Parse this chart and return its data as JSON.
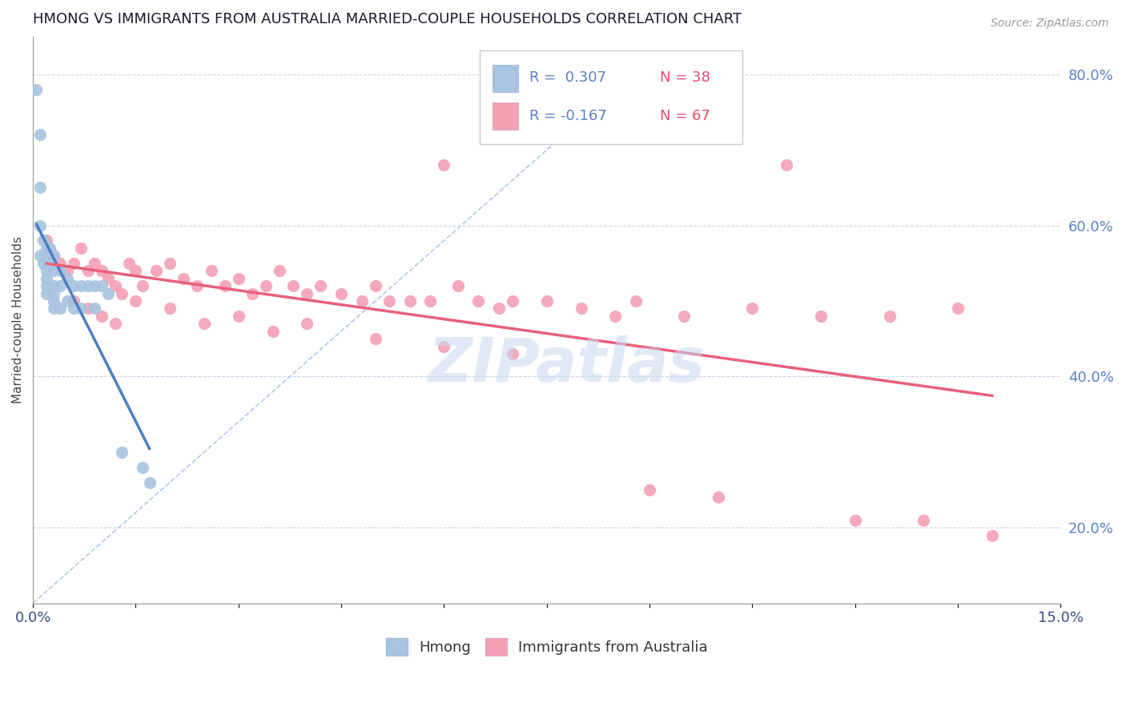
{
  "title": "HMONG VS IMMIGRANTS FROM AUSTRALIA MARRIED-COUPLE HOUSEHOLDS CORRELATION CHART",
  "source_text": "Source: ZipAtlas.com",
  "ylabel": "Married-couple Households",
  "xlim": [
    0.0,
    0.15
  ],
  "ylim": [
    0.1,
    0.85
  ],
  "xtick_positions": [
    0.0,
    0.015,
    0.03,
    0.045,
    0.06,
    0.075,
    0.09,
    0.105,
    0.12,
    0.135,
    0.15
  ],
  "xtick_labels": [
    "0.0%",
    "",
    "",
    "",
    "",
    "",
    "",
    "",
    "",
    "",
    "15.0%"
  ],
  "ytick_right_vals": [
    0.2,
    0.4,
    0.6,
    0.8
  ],
  "ytick_right_labels": [
    "20.0%",
    "40.0%",
    "60.0%",
    "80.0%"
  ],
  "hmong_color": "#a8c4e0",
  "australia_color": "#f4a0b5",
  "hmong_line_color": "#4a7fc4",
  "australia_line_color": "#e8607a",
  "ref_line_color": "#b0c8e8",
  "legend_R_hmong": "R =  0.307",
  "legend_N_hmong": "N = 38",
  "legend_R_australia": "R = -0.167",
  "legend_N_australia": "N = 67",
  "watermark": "ZIPatlas",
  "hmong_x": [
    0.0005,
    0.001,
    0.001,
    0.001,
    0.001,
    0.0015,
    0.0015,
    0.002,
    0.002,
    0.002,
    0.002,
    0.002,
    0.002,
    0.0025,
    0.0025,
    0.003,
    0.003,
    0.003,
    0.003,
    0.003,
    0.003,
    0.004,
    0.004,
    0.004,
    0.005,
    0.005,
    0.006,
    0.006,
    0.007,
    0.007,
    0.008,
    0.009,
    0.009,
    0.01,
    0.011,
    0.013,
    0.016,
    0.017
  ],
  "hmong_y": [
    0.78,
    0.72,
    0.65,
    0.6,
    0.56,
    0.58,
    0.55,
    0.57,
    0.56,
    0.54,
    0.53,
    0.52,
    0.51,
    0.57,
    0.55,
    0.56,
    0.54,
    0.52,
    0.51,
    0.5,
    0.49,
    0.54,
    0.52,
    0.49,
    0.53,
    0.5,
    0.52,
    0.49,
    0.52,
    0.49,
    0.52,
    0.52,
    0.49,
    0.52,
    0.51,
    0.3,
    0.28,
    0.26
  ],
  "australia_x": [
    0.002,
    0.003,
    0.004,
    0.005,
    0.006,
    0.007,
    0.008,
    0.009,
    0.01,
    0.011,
    0.012,
    0.013,
    0.014,
    0.015,
    0.016,
    0.018,
    0.02,
    0.022,
    0.024,
    0.026,
    0.028,
    0.03,
    0.032,
    0.034,
    0.036,
    0.038,
    0.04,
    0.042,
    0.045,
    0.048,
    0.05,
    0.052,
    0.055,
    0.058,
    0.06,
    0.062,
    0.065,
    0.068,
    0.07,
    0.075,
    0.08,
    0.085,
    0.088,
    0.09,
    0.095,
    0.1,
    0.105,
    0.11,
    0.115,
    0.12,
    0.125,
    0.13,
    0.135,
    0.14,
    0.006,
    0.008,
    0.01,
    0.012,
    0.015,
    0.02,
    0.025,
    0.03,
    0.035,
    0.04,
    0.05,
    0.06,
    0.07
  ],
  "australia_y": [
    0.58,
    0.56,
    0.55,
    0.54,
    0.55,
    0.57,
    0.54,
    0.55,
    0.54,
    0.53,
    0.52,
    0.51,
    0.55,
    0.54,
    0.52,
    0.54,
    0.55,
    0.53,
    0.52,
    0.54,
    0.52,
    0.53,
    0.51,
    0.52,
    0.54,
    0.52,
    0.51,
    0.52,
    0.51,
    0.5,
    0.52,
    0.5,
    0.5,
    0.5,
    0.68,
    0.52,
    0.5,
    0.49,
    0.5,
    0.5,
    0.49,
    0.48,
    0.5,
    0.25,
    0.48,
    0.24,
    0.49,
    0.68,
    0.48,
    0.21,
    0.48,
    0.21,
    0.49,
    0.19,
    0.5,
    0.49,
    0.48,
    0.47,
    0.5,
    0.49,
    0.47,
    0.48,
    0.46,
    0.47,
    0.45,
    0.44,
    0.43
  ]
}
